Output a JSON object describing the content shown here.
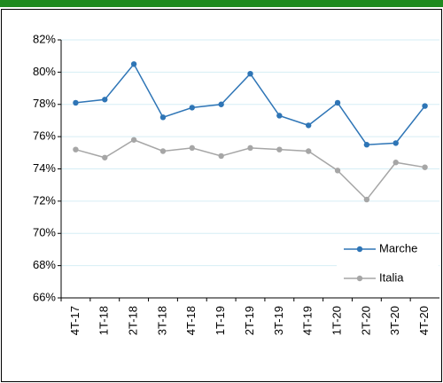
{
  "chart_data": {
    "type": "line",
    "categories": [
      "4T-17",
      "1T-18",
      "2T-18",
      "3T-18",
      "4T-18",
      "1T-19",
      "2T-19",
      "3T-19",
      "4T-19",
      "1T-20",
      "2T-20",
      "3T-20",
      "4T-20"
    ],
    "series": [
      {
        "name": "Marche",
        "color": "#2e75b6",
        "values": [
          78.1,
          78.3,
          80.5,
          77.2,
          77.8,
          78.0,
          79.9,
          77.3,
          76.7,
          78.1,
          75.5,
          75.6,
          77.9
        ]
      },
      {
        "name": "Italia",
        "color": "#a6a6a6",
        "values": [
          75.2,
          74.7,
          75.8,
          75.1,
          75.3,
          74.8,
          75.3,
          75.2,
          75.1,
          73.9,
          72.1,
          74.4,
          74.1
        ]
      }
    ],
    "ylim": [
      66,
      82
    ],
    "yticks": [
      {
        "value": 66,
        "label": "66%"
      },
      {
        "value": 68,
        "label": "68%"
      },
      {
        "value": 70,
        "label": "70%"
      },
      {
        "value": 72,
        "label": "72%"
      },
      {
        "value": 74,
        "label": "74%"
      },
      {
        "value": 76,
        "label": "76%"
      },
      {
        "value": 78,
        "label": "78%"
      },
      {
        "value": 80,
        "label": "80%"
      },
      {
        "value": 82,
        "label": "82%"
      }
    ],
    "grid": true,
    "legend": "lower right"
  }
}
